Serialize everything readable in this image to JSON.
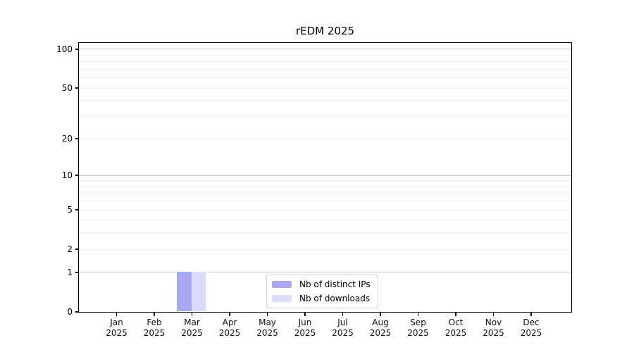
{
  "chart_data": {
    "type": "bar",
    "title": "rEDM 2025",
    "x_tick_months": [
      "Jan",
      "Feb",
      "Mar",
      "Apr",
      "May",
      "Jun",
      "Jul",
      "Aug",
      "Sep",
      "Oct",
      "Nov",
      "Dec"
    ],
    "x_tick_year": "2025",
    "categories": [
      "Jan 2025",
      "Feb 2025",
      "Mar 2025",
      "Apr 2025",
      "May 2025",
      "Jun 2025",
      "Jul 2025",
      "Aug 2025",
      "Sep 2025",
      "Oct 2025",
      "Nov 2025",
      "Dec 2025"
    ],
    "series": [
      {
        "name": "Nb of distinct IPs",
        "color": "#a7a7f4",
        "values": [
          0,
          0,
          1,
          0,
          0,
          0,
          0,
          0,
          0,
          0,
          0,
          0
        ]
      },
      {
        "name": "Nb of downloads",
        "color": "#dbdbfa",
        "values": [
          0,
          0,
          1,
          0,
          0,
          0,
          0,
          0,
          0,
          0,
          0,
          0
        ]
      }
    ],
    "y_axis": {
      "scale": "log1p",
      "ticks": [
        0,
        1,
        2,
        5,
        10,
        20,
        50,
        100
      ],
      "lim": [
        0,
        100
      ]
    },
    "grid": {
      "major_values": [
        1,
        10,
        100
      ],
      "minor_values": [
        2,
        3,
        4,
        5,
        6,
        7,
        8,
        9,
        20,
        30,
        40,
        50,
        60,
        70,
        80,
        90
      ],
      "major_color": "#c9c9c9",
      "minor_color": "#ededed"
    },
    "legend": {
      "position": "lower-center-inside"
    },
    "axis_color": "#000000",
    "background": "#ffffff"
  }
}
